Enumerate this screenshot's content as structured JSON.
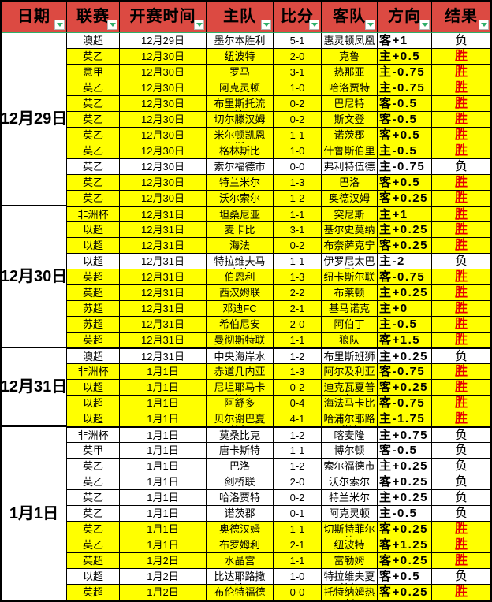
{
  "colors": {
    "header_bg": "#DC4A42",
    "highlight_row": "#FFFF00",
    "win_text": "#E60000",
    "accent_green": "#2FAF6A",
    "grid_border": "#000000"
  },
  "header": {
    "filter_icon": "triangle-down",
    "columns": [
      {
        "label": "日期"
      },
      {
        "label": "联赛"
      },
      {
        "label": "开赛时间"
      },
      {
        "label": "主队"
      },
      {
        "label": "比分"
      },
      {
        "label": "客队"
      },
      {
        "label": "方向"
      },
      {
        "label": "结果"
      }
    ]
  },
  "sections": [
    {
      "date": "12月29日",
      "rows": [
        {
          "league": "澳超",
          "time": "12月29日",
          "home": "墨尔本胜利",
          "score": "5-1",
          "away": "惠灵顿凤凰",
          "direction": "客+1",
          "result": "负",
          "win": false
        },
        {
          "league": "英乙",
          "time": "12月30日",
          "home": "纽波特",
          "score": "2-0",
          "away": "克鲁",
          "direction": "主+0.5",
          "result": "胜",
          "win": true
        },
        {
          "league": "意甲",
          "time": "12月30日",
          "home": "罗马",
          "score": "3-1",
          "away": "热那亚",
          "direction": "主-0.75",
          "result": "胜",
          "win": true
        },
        {
          "league": "英乙",
          "time": "12月30日",
          "home": "阿克灵顿",
          "score": "1-0",
          "away": "哈洛贾特",
          "direction": "主-0.75",
          "result": "胜",
          "win": true
        },
        {
          "league": "英乙",
          "time": "12月30日",
          "home": "布里斯托流浪",
          "score": "0-2",
          "away": "巴尼特",
          "direction": "客-0.5",
          "result": "胜",
          "win": true
        },
        {
          "league": "英乙",
          "time": "12月30日",
          "home": "切尔滕汉姆",
          "score": "0-2",
          "away": "斯文登",
          "direction": "客-0.5",
          "result": "胜",
          "win": true
        },
        {
          "league": "英乙",
          "time": "12月30日",
          "home": "米尔顿凯恩斯",
          "score": "1-1",
          "away": "诺茨郡",
          "direction": "客+0.5",
          "result": "胜",
          "win": true
        },
        {
          "league": "英乙",
          "time": "12月30日",
          "home": "格林斯比",
          "score": "1-0",
          "away": "什鲁斯伯里",
          "direction": "主-0.5",
          "result": "胜",
          "win": true
        },
        {
          "league": "英乙",
          "time": "12月30日",
          "home": "索尔福德市",
          "score": "0-0",
          "away": "弗利特伍德",
          "direction": "主-0.75",
          "result": "负",
          "win": false
        },
        {
          "league": "英乙",
          "time": "12月30日",
          "home": "特兰米尔",
          "score": "1-3",
          "away": "巴洛",
          "direction": "客+0.5",
          "result": "胜",
          "win": true
        },
        {
          "league": "英乙",
          "time": "12月30日",
          "home": "沃尔索尔",
          "score": "1-2",
          "away": "奥德汉姆",
          "direction": "客+0.25",
          "result": "胜",
          "win": true
        }
      ]
    },
    {
      "date": "12月30日",
      "rows": [
        {
          "league": "非洲杯",
          "time": "12月31日",
          "home": "坦桑尼亚",
          "score": "1-1",
          "away": "突尼斯",
          "direction": "主+1",
          "result": "胜",
          "win": true
        },
        {
          "league": "以超",
          "time": "12月31日",
          "home": "麦卡比",
          "score": "3-1",
          "away": "基尔史莫纳",
          "direction": "主+0.25",
          "result": "胜",
          "win": true
        },
        {
          "league": "以超",
          "time": "12月31日",
          "home": "海法",
          "score": "0-2",
          "away": "布奈萨克宁",
          "direction": "客+0.25",
          "result": "胜",
          "win": true
        },
        {
          "league": "以超",
          "time": "12月31日",
          "home": "特拉维夫马卡比",
          "score": "1-1",
          "away": "伊罗尼太巴列",
          "direction": "主-2",
          "result": "负",
          "win": false
        },
        {
          "league": "英超",
          "time": "12月31日",
          "home": "伯恩利",
          "score": "1-3",
          "away": "纽卡斯尔联",
          "direction": "客-0.75",
          "result": "胜",
          "win": true
        },
        {
          "league": "英超",
          "time": "12月31日",
          "home": "西汉姆联",
          "score": "2-2",
          "away": "布莱顿",
          "direction": "主+0.25",
          "result": "胜",
          "win": true
        },
        {
          "league": "苏超",
          "time": "12月31日",
          "home": "邓迪FC",
          "score": "2-1",
          "away": "基马诺克",
          "direction": "主+0",
          "result": "胜",
          "win": true
        },
        {
          "league": "苏超",
          "time": "12月31日",
          "home": "希伯尼安",
          "score": "2-0",
          "away": "阿伯丁",
          "direction": "主-0.5",
          "result": "胜",
          "win": true
        },
        {
          "league": "英超",
          "time": "12月31日",
          "home": "曼彻斯特联",
          "score": "1-1",
          "away": "狼队",
          "direction": "客+1.5",
          "result": "胜",
          "win": true
        }
      ]
    },
    {
      "date": "12月31日",
      "rows": [
        {
          "league": "澳超",
          "time": "12月31日",
          "home": "中央海岸水手",
          "score": "1-2",
          "away": "布里斯班狮吼",
          "direction": "主+0.25",
          "result": "负",
          "win": false
        },
        {
          "league": "非洲杯",
          "time": "1月1日",
          "home": "赤道几内亚",
          "score": "1-3",
          "away": "阿尔及利亚",
          "direction": "客-0.75",
          "result": "胜",
          "win": true
        },
        {
          "league": "以超",
          "time": "1月1日",
          "home": "尼坦耶马卡比",
          "score": "0-2",
          "away": "迪克瓦夏普尔",
          "direction": "客+0.25",
          "result": "胜",
          "win": true
        },
        {
          "league": "以超",
          "time": "1月1日",
          "home": "阿舒多",
          "score": "0-4",
          "away": "海法马卡比",
          "direction": "客-0.75",
          "result": "胜",
          "win": true
        },
        {
          "league": "以超",
          "time": "1月1日",
          "home": "贝尔谢巴夏普尔",
          "score": "4-1",
          "away": "哈浦尔耶路撒冷",
          "direction": "主-1.75",
          "result": "胜",
          "win": true
        }
      ]
    },
    {
      "date": "1月1日",
      "rows": [
        {
          "league": "非洲杯",
          "time": "1月1日",
          "home": "莫桑比克",
          "score": "1-2",
          "away": "喀麦隆",
          "direction": "主+0.75",
          "result": "负",
          "win": false
        },
        {
          "league": "英甲",
          "time": "1月1日",
          "home": "唐卡斯特",
          "score": "1-1",
          "away": "博尔顿",
          "direction": "客-0.5",
          "result": "负",
          "win": false
        },
        {
          "league": "英乙",
          "time": "1月1日",
          "home": "巴洛",
          "score": "1-2",
          "away": "索尔福德市",
          "direction": "主+0.25",
          "result": "负",
          "win": false
        },
        {
          "league": "英乙",
          "time": "1月1日",
          "home": "剑桥联",
          "score": "2-0",
          "away": "沃尔索尔",
          "direction": "客+0.25",
          "result": "负",
          "win": false
        },
        {
          "league": "英乙",
          "time": "1月1日",
          "home": "哈洛贾特",
          "score": "0-2",
          "away": "特兰米尔",
          "direction": "主+0.25",
          "result": "负",
          "win": false
        },
        {
          "league": "英乙",
          "time": "1月1日",
          "home": "诺茨郡",
          "score": "0-1",
          "away": "阿克灵顿",
          "direction": "主-0.5",
          "result": "负",
          "win": false
        },
        {
          "league": "英乙",
          "time": "1月1日",
          "home": "奥德汉姆",
          "score": "1-1",
          "away": "切斯特菲尔德",
          "direction": "客+0.25",
          "result": "胜",
          "win": true
        },
        {
          "league": "英乙",
          "time": "1月1日",
          "home": "布罗姆利",
          "score": "2-1",
          "away": "纽波特",
          "direction": "客+1.25",
          "result": "胜",
          "win": true
        },
        {
          "league": "英超",
          "time": "1月2日",
          "home": "水晶宫",
          "score": "1-1",
          "away": "富勒姆",
          "direction": "客+0.25",
          "result": "胜",
          "win": true
        },
        {
          "league": "以超",
          "time": "1月2日",
          "home": "比达耶路撒冷",
          "score": "1-0",
          "away": "特拉维夫夏普尔",
          "direction": "客+0.5",
          "result": "负",
          "win": false
        },
        {
          "league": "英超",
          "time": "1月2日",
          "home": "布伦特福德",
          "score": "0-0",
          "away": "托特纳姆热刺",
          "direction": "客+0.25",
          "result": "胜",
          "win": true
        }
      ]
    }
  ]
}
